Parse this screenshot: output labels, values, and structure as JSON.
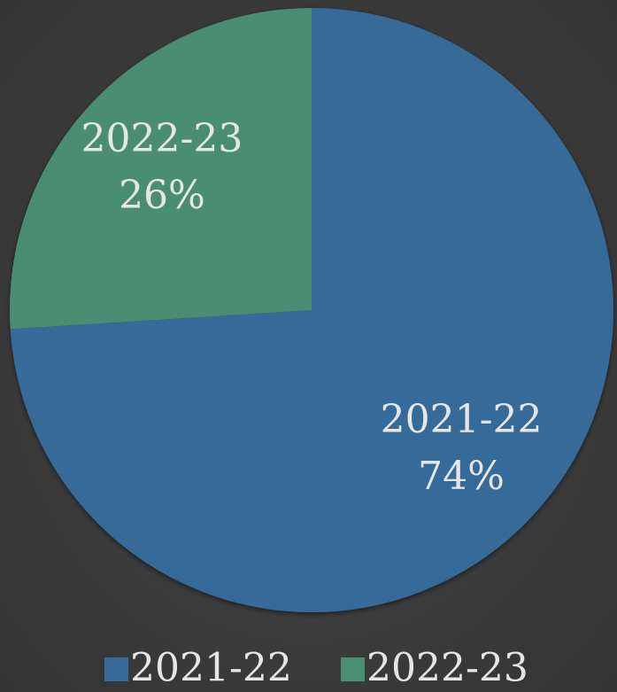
{
  "chart_data": {
    "type": "pie",
    "categories": [
      "2021-22",
      "2022-23"
    ],
    "values": [
      74,
      26
    ],
    "value_labels": [
      "74%",
      "26%"
    ],
    "colors": [
      "#356a99",
      "#4a8e73"
    ],
    "legend": "bottom"
  }
}
